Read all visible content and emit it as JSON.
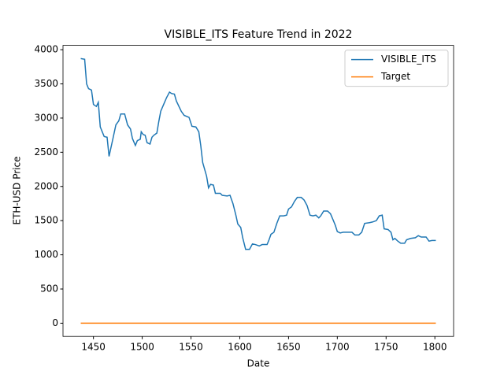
{
  "chart_data": {
    "type": "line",
    "title": "VISIBLE_ITS Feature Trend in 2022",
    "x_label": "Date",
    "y_label": "ETH-USD Price",
    "xlim": [
      1418.8,
      1819.2
    ],
    "ylim": [
      -193.5,
      4063.5
    ],
    "xticks": [
      1450,
      1500,
      1550,
      1600,
      1650,
      1700,
      1750,
      1800
    ],
    "yticks": [
      0,
      500,
      1000,
      1500,
      2000,
      2500,
      3000,
      3500,
      4000
    ],
    "legend": "upper right",
    "series": [
      {
        "name": "VISIBLE_ITS",
        "color": "#1f77b4",
        "x": [
          1437,
          1441,
          1443,
          1445,
          1448,
          1450,
          1453,
          1455,
          1457,
          1459,
          1461,
          1464,
          1466,
          1468,
          1470,
          1473,
          1476,
          1478,
          1482,
          1485,
          1488,
          1490,
          1493,
          1495,
          1498,
          1499,
          1501,
          1503,
          1505,
          1508,
          1510,
          1512,
          1515,
          1517,
          1519,
          1522,
          1525,
          1528,
          1530,
          1533,
          1535,
          1538,
          1540,
          1543,
          1548,
          1551,
          1555,
          1558,
          1560,
          1562,
          1564,
          1566,
          1568,
          1570,
          1573,
          1575,
          1580,
          1582,
          1587,
          1590,
          1593,
          1596,
          1598,
          1601,
          1603,
          1606,
          1610,
          1613,
          1616,
          1620,
          1623,
          1628,
          1630,
          1632,
          1635,
          1638,
          1641,
          1645,
          1648,
          1650,
          1653,
          1656,
          1659,
          1663,
          1666,
          1669,
          1672,
          1675,
          1678,
          1681,
          1683,
          1686,
          1690,
          1693,
          1696,
          1698,
          1700,
          1703,
          1706,
          1710,
          1715,
          1718,
          1722,
          1725,
          1728,
          1733,
          1736,
          1740,
          1743,
          1746,
          1748,
          1752,
          1755,
          1757,
          1759,
          1762,
          1765,
          1769,
          1771,
          1775,
          1780,
          1783,
          1786,
          1791,
          1794,
          1797,
          1801
        ],
        "values": [
          3870,
          3860,
          3500,
          3430,
          3410,
          3200,
          3170,
          3230,
          2870,
          2800,
          2730,
          2720,
          2440,
          2570,
          2700,
          2900,
          2960,
          3060,
          3060,
          2900,
          2840,
          2700,
          2600,
          2670,
          2690,
          2800,
          2760,
          2750,
          2640,
          2620,
          2720,
          2750,
          2780,
          2950,
          3100,
          3200,
          3300,
          3380,
          3360,
          3350,
          3250,
          3160,
          3100,
          3040,
          3010,
          2880,
          2870,
          2800,
          2600,
          2350,
          2250,
          2150,
          1980,
          2030,
          2020,
          1900,
          1900,
          1870,
          1860,
          1870,
          1750,
          1580,
          1450,
          1400,
          1250,
          1080,
          1080,
          1160,
          1150,
          1130,
          1150,
          1150,
          1220,
          1300,
          1330,
          1460,
          1570,
          1570,
          1580,
          1670,
          1700,
          1780,
          1840,
          1840,
          1800,
          1720,
          1580,
          1570,
          1580,
          1540,
          1570,
          1640,
          1640,
          1600,
          1500,
          1430,
          1340,
          1320,
          1330,
          1330,
          1330,
          1290,
          1290,
          1330,
          1460,
          1470,
          1480,
          1500,
          1570,
          1580,
          1380,
          1370,
          1330,
          1220,
          1240,
          1200,
          1170,
          1170,
          1220,
          1240,
          1250,
          1280,
          1260,
          1260,
          1200,
          1210,
          1210
        ]
      },
      {
        "name": "Target",
        "color": "#ff7f0e",
        "x": [
          1437,
          1801
        ],
        "values": [
          0,
          0
        ]
      }
    ]
  }
}
